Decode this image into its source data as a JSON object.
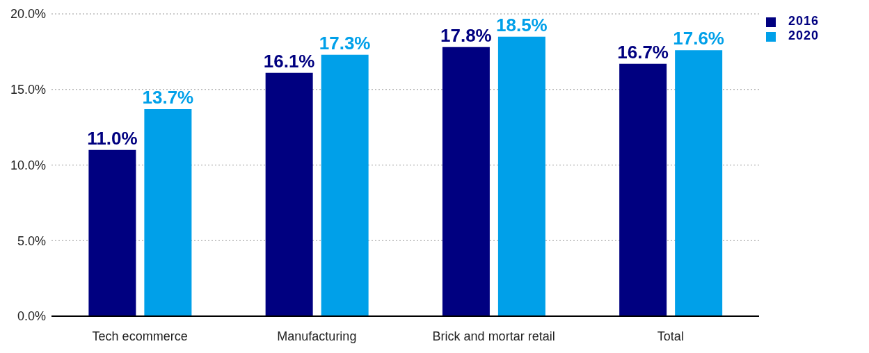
{
  "chart_data": {
    "type": "bar",
    "categories": [
      "Tech ecommerce",
      "Manufacturing",
      "Brick and mortar retail",
      "Total"
    ],
    "series": [
      {
        "name": "2016",
        "color": "#000080",
        "values": [
          11.0,
          16.1,
          17.8,
          16.7
        ],
        "value_labels": [
          "11.0%",
          "16.1%",
          "17.8%",
          "16.7%"
        ]
      },
      {
        "name": "2020",
        "color": "#00a0e9",
        "values": [
          13.7,
          17.3,
          18.5,
          17.6
        ],
        "value_labels": [
          "13.7%",
          "17.3%",
          "18.5%",
          "17.6%"
        ]
      }
    ],
    "ylim": [
      0,
      20
    ],
    "yticks": [
      {
        "value": 0,
        "label": "0.0%"
      },
      {
        "value": 5,
        "label": "5.0%"
      },
      {
        "value": 10,
        "label": "10.0%"
      },
      {
        "value": 15,
        "label": "15.0%"
      },
      {
        "value": 20,
        "label": "20.0%"
      }
    ],
    "grid": "y",
    "legend": "top right"
  }
}
